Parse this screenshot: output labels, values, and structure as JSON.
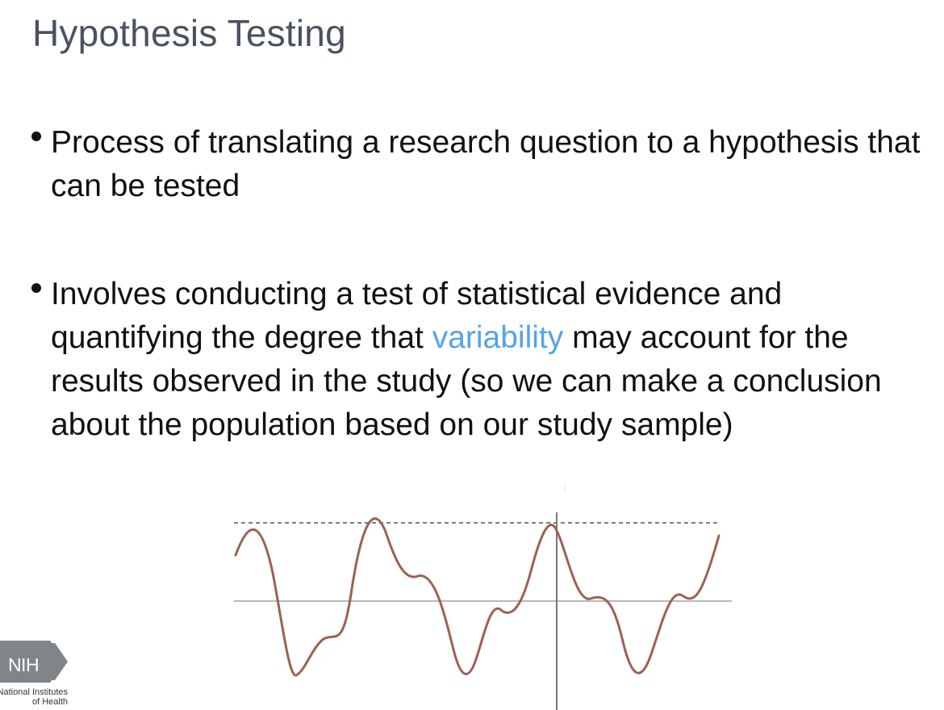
{
  "slide": {
    "title": "Hypothesis Testing",
    "bullets": [
      {
        "text": "Process of translating a research question to a hypothesis that can be tested"
      },
      {
        "before": "Involves conducting a test of statistical evidence and quantifying the degree that ",
        "highlight": "variability",
        "after": " may account for the results observed in the study (so we can make a conclusion about the population based on our study sample)"
      }
    ],
    "logo": {
      "mark": "NIH",
      "caption_line1": "National Institutes",
      "caption_line2": "of Health"
    },
    "colors": {
      "title": "#4a5260",
      "highlight": "#55a4e6",
      "wave": "#9b6252",
      "logo": "#7f8588"
    },
    "icons": {
      "logo": "nih-logo-icon",
      "figure": "wave-variability-figure"
    }
  }
}
